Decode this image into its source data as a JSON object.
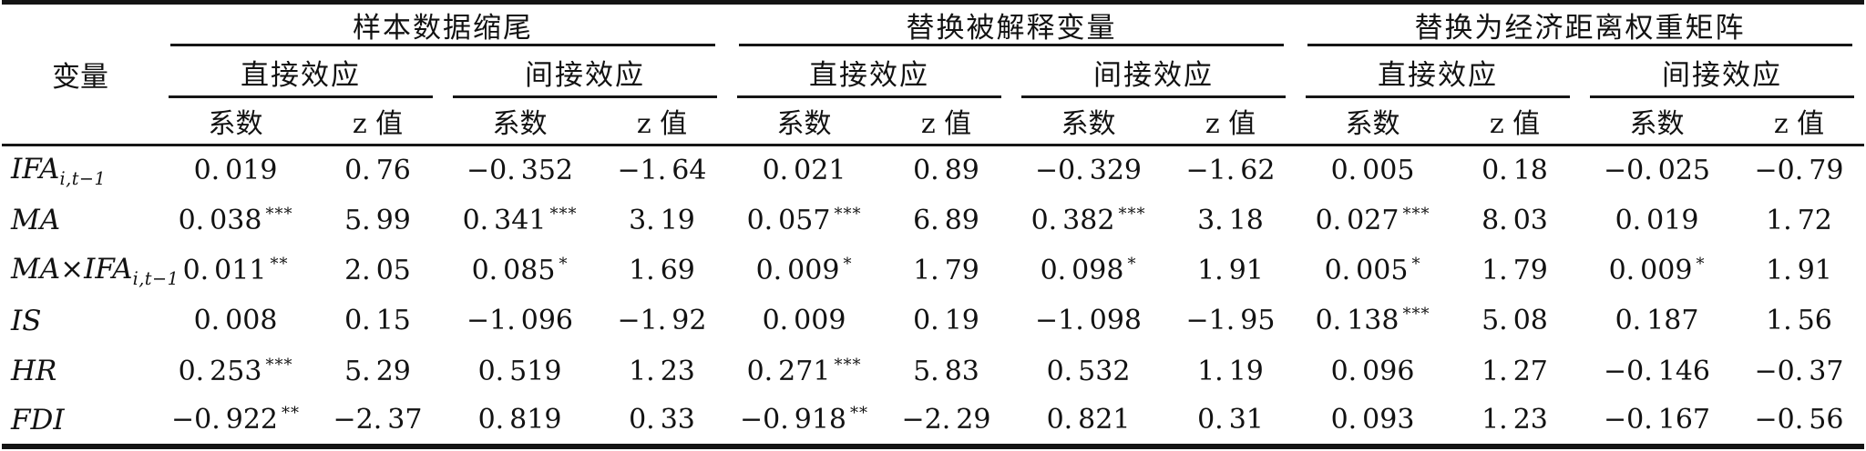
{
  "colors": {
    "background": "#ffffff",
    "text": "#121212",
    "rule": "#161616"
  },
  "table": {
    "variable_header": "变量",
    "groups": [
      {
        "label": "样本数据缩尾"
      },
      {
        "label": "替换被解释变量"
      },
      {
        "label": "替换为经济距离权重矩阵"
      }
    ],
    "effect_headers": [
      "直接效应",
      "间接效应"
    ],
    "measure_headers": [
      "系数",
      "z 值"
    ],
    "rows": [
      {
        "variable": "IFA",
        "variable_sub": "i,t−1",
        "cells": [
          {
            "v": "0.019"
          },
          {
            "v": "0.76"
          },
          {
            "v": "-0.352"
          },
          {
            "v": "-1.64"
          },
          {
            "v": "0.021"
          },
          {
            "v": "0.89"
          },
          {
            "v": "-0.329"
          },
          {
            "v": "-1.62"
          },
          {
            "v": "0.005"
          },
          {
            "v": "0.18"
          },
          {
            "v": "-0.025"
          },
          {
            "v": "-0.79"
          }
        ]
      },
      {
        "variable": "MA",
        "variable_sub": "",
        "cells": [
          {
            "v": "0.038",
            "s": "***"
          },
          {
            "v": "5.99"
          },
          {
            "v": "0.341",
            "s": "***"
          },
          {
            "v": "3.19"
          },
          {
            "v": "0.057",
            "s": "***"
          },
          {
            "v": "6.89"
          },
          {
            "v": "0.382",
            "s": "***"
          },
          {
            "v": "3.18"
          },
          {
            "v": "0.027",
            "s": "***"
          },
          {
            "v": "8.03"
          },
          {
            "v": "0.019"
          },
          {
            "v": "1.72"
          }
        ]
      },
      {
        "variable": "MA×IFA",
        "variable_sub": "i,t−1",
        "cells": [
          {
            "v": "0.011",
            "s": "**"
          },
          {
            "v": "2.05"
          },
          {
            "v": "0.085",
            "s": "*"
          },
          {
            "v": "1.69"
          },
          {
            "v": "0.009",
            "s": "*"
          },
          {
            "v": "1.79"
          },
          {
            "v": "0.098",
            "s": "*"
          },
          {
            "v": "1.91"
          },
          {
            "v": "0.005",
            "s": "*"
          },
          {
            "v": "1.79"
          },
          {
            "v": "0.009",
            "s": "*"
          },
          {
            "v": "1.91"
          }
        ]
      },
      {
        "variable": "IS",
        "variable_sub": "",
        "cells": [
          {
            "v": "0.008"
          },
          {
            "v": "0.15"
          },
          {
            "v": "-1.096"
          },
          {
            "v": "-1.92"
          },
          {
            "v": "0.009"
          },
          {
            "v": "0.19"
          },
          {
            "v": "-1.098"
          },
          {
            "v": "-1.95"
          },
          {
            "v": "0.138",
            "s": "***"
          },
          {
            "v": "5.08"
          },
          {
            "v": "0.187"
          },
          {
            "v": "1.56"
          }
        ]
      },
      {
        "variable": "HR",
        "variable_sub": "",
        "cells": [
          {
            "v": "0.253",
            "s": "***"
          },
          {
            "v": "5.29"
          },
          {
            "v": "0.519"
          },
          {
            "v": "1.23"
          },
          {
            "v": "0.271",
            "s": "***"
          },
          {
            "v": "5.83"
          },
          {
            "v": "0.532"
          },
          {
            "v": "1.19"
          },
          {
            "v": "0.096"
          },
          {
            "v": "1.27"
          },
          {
            "v": "-0.146"
          },
          {
            "v": "-0.37"
          }
        ]
      },
      {
        "variable": "FDI",
        "variable_sub": "",
        "cells": [
          {
            "v": "-0.922",
            "s": "**"
          },
          {
            "v": "-2.37"
          },
          {
            "v": "0.819"
          },
          {
            "v": "0.33"
          },
          {
            "v": "-0.918",
            "s": "**"
          },
          {
            "v": "-2.29"
          },
          {
            "v": "0.821"
          },
          {
            "v": "0.31"
          },
          {
            "v": "0.093"
          },
          {
            "v": "1.23"
          },
          {
            "v": "-0.167"
          },
          {
            "v": "-0.56"
          }
        ]
      }
    ]
  }
}
